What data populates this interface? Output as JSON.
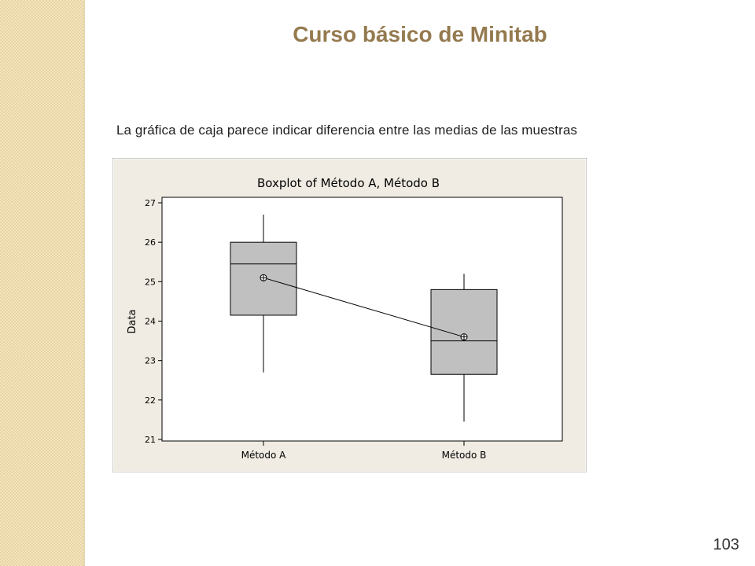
{
  "slide": {
    "title": "Curso básico de Minitab",
    "subtitle": "La gráfica de caja parece indicar diferencia entre las medias de las muestras",
    "page_number": "103"
  },
  "colors": {
    "title": "#957a4f",
    "sidebar": "#f3e4bd",
    "chart_background": "#f0ece3",
    "box_fill": "#c0c0c0"
  },
  "chart_data": {
    "type": "boxplot",
    "title": "Boxplot of Método A, Método B",
    "xlabel": "",
    "ylabel": "Data",
    "ylim": [
      21,
      27
    ],
    "yticks": [
      "21",
      "22",
      "23",
      "24",
      "25",
      "26",
      "27"
    ],
    "grid": false,
    "categories": [
      "Método A",
      "Método B"
    ],
    "boxes": [
      {
        "name": "Método A",
        "min": 22.7,
        "q1": 24.15,
        "median": 25.45,
        "q3": 26.0,
        "max": 26.7,
        "mean": 25.1
      },
      {
        "name": "Método B",
        "min": 21.45,
        "q1": 22.65,
        "median": 23.5,
        "q3": 24.8,
        "max": 25.2,
        "mean": 23.6
      }
    ],
    "mean_connect_line": true
  }
}
